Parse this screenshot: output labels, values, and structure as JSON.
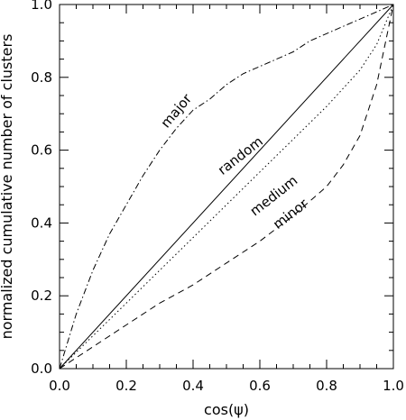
{
  "chart_data": {
    "type": "line",
    "xlabel": "cos(ψ)",
    "ylabel": "normalized cumulative number of clusters",
    "xlim": [
      0.0,
      1.0
    ],
    "ylim": [
      0.0,
      1.0
    ],
    "x_ticks": [
      "0.0",
      "0.2",
      "0.4",
      "0.6",
      "0.8",
      "1.0"
    ],
    "y_ticks": [
      "0.0",
      "0.2",
      "0.4",
      "0.6",
      "0.8",
      "1.0"
    ],
    "grid": false,
    "legend": "none",
    "series": [
      {
        "name": "major",
        "line_style": "dash-dot",
        "x": [
          0.0,
          0.05,
          0.1,
          0.15,
          0.2,
          0.25,
          0.3,
          0.35,
          0.4,
          0.45,
          0.5,
          0.55,
          0.6,
          0.65,
          0.7,
          0.75,
          0.8,
          0.85,
          0.9,
          0.95,
          1.0
        ],
        "y": [
          0.0,
          0.15,
          0.27,
          0.37,
          0.45,
          0.53,
          0.6,
          0.66,
          0.71,
          0.74,
          0.78,
          0.81,
          0.83,
          0.85,
          0.87,
          0.9,
          0.92,
          0.94,
          0.96,
          0.98,
          1.0
        ]
      },
      {
        "name": "random",
        "line_style": "solid",
        "x": [
          0.0,
          1.0
        ],
        "y": [
          0.0,
          1.0
        ]
      },
      {
        "name": "medium",
        "line_style": "dotted",
        "x": [
          0.0,
          0.1,
          0.2,
          0.3,
          0.4,
          0.5,
          0.6,
          0.7,
          0.8,
          0.9,
          0.95,
          1.0
        ],
        "y": [
          0.0,
          0.09,
          0.18,
          0.27,
          0.36,
          0.45,
          0.54,
          0.63,
          0.72,
          0.82,
          0.89,
          1.0
        ]
      },
      {
        "name": "minor",
        "line_style": "dashed",
        "x": [
          0.0,
          0.1,
          0.2,
          0.3,
          0.4,
          0.5,
          0.6,
          0.7,
          0.8,
          0.85,
          0.9,
          0.95,
          1.0
        ],
        "y": [
          0.0,
          0.06,
          0.12,
          0.18,
          0.23,
          0.29,
          0.35,
          0.42,
          0.5,
          0.56,
          0.64,
          0.78,
          1.0
        ]
      }
    ],
    "annotations": [
      {
        "text": "major",
        "x": 0.36,
        "y": 0.7,
        "angle": -50
      },
      {
        "text": "random",
        "x": 0.55,
        "y": 0.575,
        "angle": -38
      },
      {
        "text": "medium",
        "x": 0.65,
        "y": 0.465,
        "angle": -38
      },
      {
        "text": "minor",
        "x": 0.7,
        "y": 0.415,
        "angle": -38
      }
    ]
  }
}
